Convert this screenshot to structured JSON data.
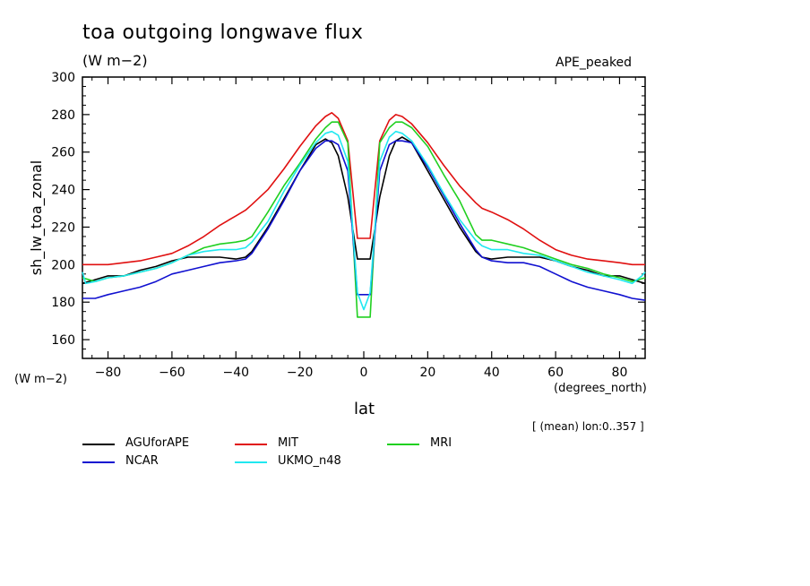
{
  "chart_data": {
    "type": "line",
    "title": "toa outgoing longwave flux",
    "units": "(W m−2)",
    "experiment": "APE_peaked",
    "xlabel": "lat",
    "xunits": "(degrees_north)",
    "ylabel": "sh_lw_toa_zonal",
    "yunits": "(W m−2)",
    "note": "[ (mean) lon:0..357 ]",
    "xlim": [
      -88,
      88
    ],
    "ylim": [
      150,
      300
    ],
    "xticks": [
      -80,
      -60,
      -40,
      -20,
      0,
      20,
      40,
      60,
      80
    ],
    "yticks": [
      160,
      180,
      200,
      220,
      240,
      260,
      280,
      300
    ],
    "grid": false,
    "legend_position": "bottom",
    "series": [
      {
        "name": "AGUforAPE",
        "color": "#000000",
        "x": [
          -88,
          -84,
          -80,
          -75,
          -70,
          -65,
          -60,
          -55,
          -50,
          -45,
          -40,
          -37,
          -35,
          -30,
          -25,
          -20,
          -15,
          -12,
          -10,
          -8,
          -5,
          -2,
          0,
          2,
          5,
          8,
          10,
          12,
          15,
          20,
          25,
          30,
          35,
          37,
          40,
          45,
          50,
          55,
          60,
          65,
          70,
          75,
          80,
          84,
          88
        ],
        "y": [
          190,
          192,
          194,
          194,
          197,
          199,
          202,
          204,
          204,
          204,
          203,
          204,
          207,
          220,
          235,
          250,
          264,
          267,
          265,
          258,
          236,
          203,
          203,
          203,
          236,
          258,
          266,
          268,
          265,
          250,
          235,
          220,
          207,
          204,
          203,
          204,
          204,
          204,
          202,
          199,
          197,
          194,
          194,
          192,
          190
        ]
      },
      {
        "name": "MIT",
        "color": "#e01010",
        "x": [
          -88,
          -84,
          -80,
          -75,
          -70,
          -65,
          -60,
          -55,
          -50,
          -45,
          -40,
          -37,
          -35,
          -30,
          -25,
          -20,
          -15,
          -12,
          -10,
          -8,
          -5,
          -2,
          0,
          2,
          5,
          8,
          10,
          12,
          15,
          20,
          25,
          30,
          35,
          37,
          40,
          45,
          50,
          55,
          60,
          65,
          70,
          75,
          80,
          84,
          88
        ],
        "y": [
          200,
          200,
          200,
          201,
          202,
          204,
          206,
          210,
          215,
          221,
          226,
          229,
          232,
          240,
          251,
          263,
          274,
          279,
          281,
          278,
          266,
          214,
          214,
          214,
          266,
          277,
          280,
          279,
          275,
          265,
          253,
          242,
          233,
          230,
          228,
          224,
          219,
          213,
          208,
          205,
          203,
          202,
          201,
          200,
          200
        ]
      },
      {
        "name": "MRI",
        "color": "#20d020",
        "x": [
          -88,
          -84,
          -80,
          -75,
          -70,
          -65,
          -60,
          -55,
          -50,
          -45,
          -40,
          -37,
          -35,
          -30,
          -25,
          -20,
          -15,
          -12,
          -10,
          -8,
          -5,
          -2,
          0,
          2,
          5,
          8,
          10,
          12,
          15,
          20,
          25,
          30,
          35,
          37,
          40,
          45,
          50,
          55,
          60,
          65,
          70,
          75,
          80,
          84,
          88
        ],
        "y": [
          193,
          191,
          193,
          194,
          196,
          198,
          201,
          205,
          209,
          211,
          212,
          213,
          215,
          228,
          242,
          254,
          267,
          273,
          276,
          276,
          265,
          172,
          172,
          172,
          265,
          273,
          276,
          276,
          273,
          263,
          248,
          234,
          216,
          213,
          213,
          211,
          209,
          206,
          203,
          200,
          198,
          195,
          193,
          191,
          193
        ]
      },
      {
        "name": "NCAR",
        "color": "#1010d0",
        "x": [
          -88,
          -84,
          -80,
          -75,
          -70,
          -65,
          -60,
          -55,
          -50,
          -45,
          -40,
          -37,
          -35,
          -30,
          -25,
          -20,
          -15,
          -12,
          -10,
          -8,
          -5,
          -2,
          0,
          2,
          5,
          8,
          10,
          12,
          15,
          20,
          25,
          30,
          35,
          37,
          40,
          45,
          50,
          55,
          60,
          65,
          70,
          75,
          80,
          84,
          88
        ],
        "y": [
          182,
          182,
          184,
          186,
          188,
          191,
          195,
          197,
          199,
          201,
          202,
          203,
          206,
          219,
          234,
          250,
          262,
          266,
          266,
          264,
          250,
          184,
          184,
          184,
          250,
          264,
          266,
          266,
          265,
          252,
          237,
          222,
          208,
          204,
          202,
          201,
          201,
          199,
          195,
          191,
          188,
          186,
          184,
          182,
          181
        ]
      },
      {
        "name": "UKMO_n48",
        "color": "#20e8f0",
        "x": [
          -88,
          -87,
          -84,
          -80,
          -75,
          -70,
          -65,
          -60,
          -55,
          -50,
          -45,
          -40,
          -37,
          -35,
          -30,
          -25,
          -20,
          -15,
          -12,
          -10,
          -8,
          -5,
          -2,
          0,
          2,
          5,
          8,
          10,
          12,
          15,
          20,
          25,
          30,
          35,
          37,
          40,
          45,
          50,
          55,
          60,
          65,
          70,
          75,
          80,
          84,
          87,
          88
        ],
        "y": [
          196,
          190,
          191,
          193,
          194,
          196,
          198,
          201,
          205,
          207,
          208,
          208,
          209,
          212,
          223,
          239,
          253,
          265,
          270,
          271,
          269,
          255,
          185,
          176,
          185,
          255,
          268,
          271,
          270,
          266,
          253,
          238,
          224,
          213,
          210,
          208,
          208,
          206,
          205,
          202,
          199,
          196,
          194,
          192,
          190,
          194,
          196
        ]
      }
    ]
  }
}
